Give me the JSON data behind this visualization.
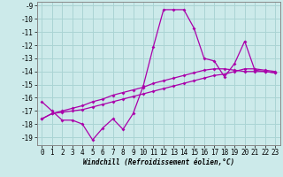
{
  "xlabel": "Windchill (Refroidissement éolien,°C)",
  "background_color": "#cceaea",
  "grid_color": "#aad4d4",
  "line_color": "#aa00aa",
  "x": [
    0,
    1,
    2,
    3,
    4,
    5,
    6,
    7,
    8,
    9,
    10,
    11,
    12,
    13,
    14,
    15,
    16,
    17,
    18,
    19,
    20,
    21,
    22,
    23
  ],
  "y_main": [
    -16.3,
    -17.0,
    -17.7,
    -17.7,
    -18.0,
    -19.2,
    -18.3,
    -17.6,
    -18.4,
    -17.2,
    -15.1,
    -12.1,
    -9.3,
    -9.3,
    -9.3,
    -10.7,
    -13.0,
    -13.2,
    -14.4,
    -13.4,
    -11.7,
    -13.9,
    -14.0,
    -14.1
  ],
  "y_trend1": [
    -17.6,
    -17.2,
    -17.1,
    -17.0,
    -16.9,
    -16.7,
    -16.5,
    -16.3,
    -16.1,
    -15.9,
    -15.7,
    -15.5,
    -15.3,
    -15.1,
    -14.9,
    -14.7,
    -14.5,
    -14.3,
    -14.2,
    -14.0,
    -13.8,
    -13.8,
    -13.9,
    -14.0
  ],
  "y_trend2": [
    -17.6,
    -17.2,
    -17.0,
    -16.8,
    -16.6,
    -16.3,
    -16.1,
    -15.8,
    -15.6,
    -15.4,
    -15.2,
    -14.9,
    -14.7,
    -14.5,
    -14.3,
    -14.1,
    -13.9,
    -13.8,
    -13.8,
    -13.9,
    -14.0,
    -14.0,
    -14.0,
    -14.1
  ],
  "ylim": [
    -19.6,
    -8.7
  ],
  "xlim": [
    -0.5,
    23.5
  ],
  "yticks": [
    -9,
    -10,
    -11,
    -12,
    -13,
    -14,
    -15,
    -16,
    -17,
    -18,
    -19
  ],
  "xticks": [
    0,
    1,
    2,
    3,
    4,
    5,
    6,
    7,
    8,
    9,
    10,
    11,
    12,
    13,
    14,
    15,
    16,
    17,
    18,
    19,
    20,
    21,
    22,
    23
  ],
  "tick_fontsize": 5.5,
  "xlabel_fontsize": 5.5
}
